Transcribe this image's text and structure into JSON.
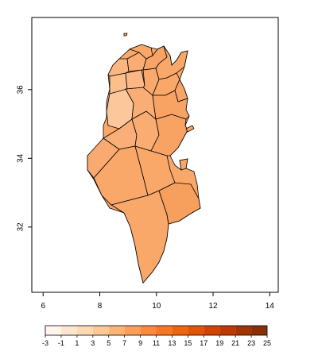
{
  "map": {
    "x_axis": {
      "ticks": [
        {
          "value": 6,
          "label": "6"
        },
        {
          "value": 8,
          "label": "8"
        },
        {
          "value": 10,
          "label": "10"
        },
        {
          "value": 12,
          "label": "12"
        },
        {
          "value": 14,
          "label": "14"
        }
      ],
      "range": [
        5.6,
        14.3
      ]
    },
    "y_axis": {
      "ticks": [
        {
          "value": 32,
          "label": "32"
        },
        {
          "value": 34,
          "label": "34"
        },
        {
          "value": 36,
          "label": "36"
        }
      ],
      "range": [
        30.1,
        38.1
      ]
    },
    "colors": {
      "land_fill": "#f9a86a",
      "land_fill_light": "#fcc79a",
      "land_fill_mid": "#f8b07a",
      "border": "#000000"
    }
  },
  "legend": {
    "breaks": [
      "-3",
      "-1",
      "1",
      "3",
      "5",
      "7",
      "9",
      "11",
      "13",
      "15",
      "17",
      "19",
      "21",
      "23",
      "25"
    ],
    "colors": [
      "#fff5eb",
      "#fee6ce",
      "#fdd9b4",
      "#fdc893",
      "#fdb475",
      "#fd9f56",
      "#fb8a3c",
      "#f77726",
      "#ee6511",
      "#e15307",
      "#d14302",
      "#bc3902",
      "#a23403",
      "#873005"
    ]
  }
}
